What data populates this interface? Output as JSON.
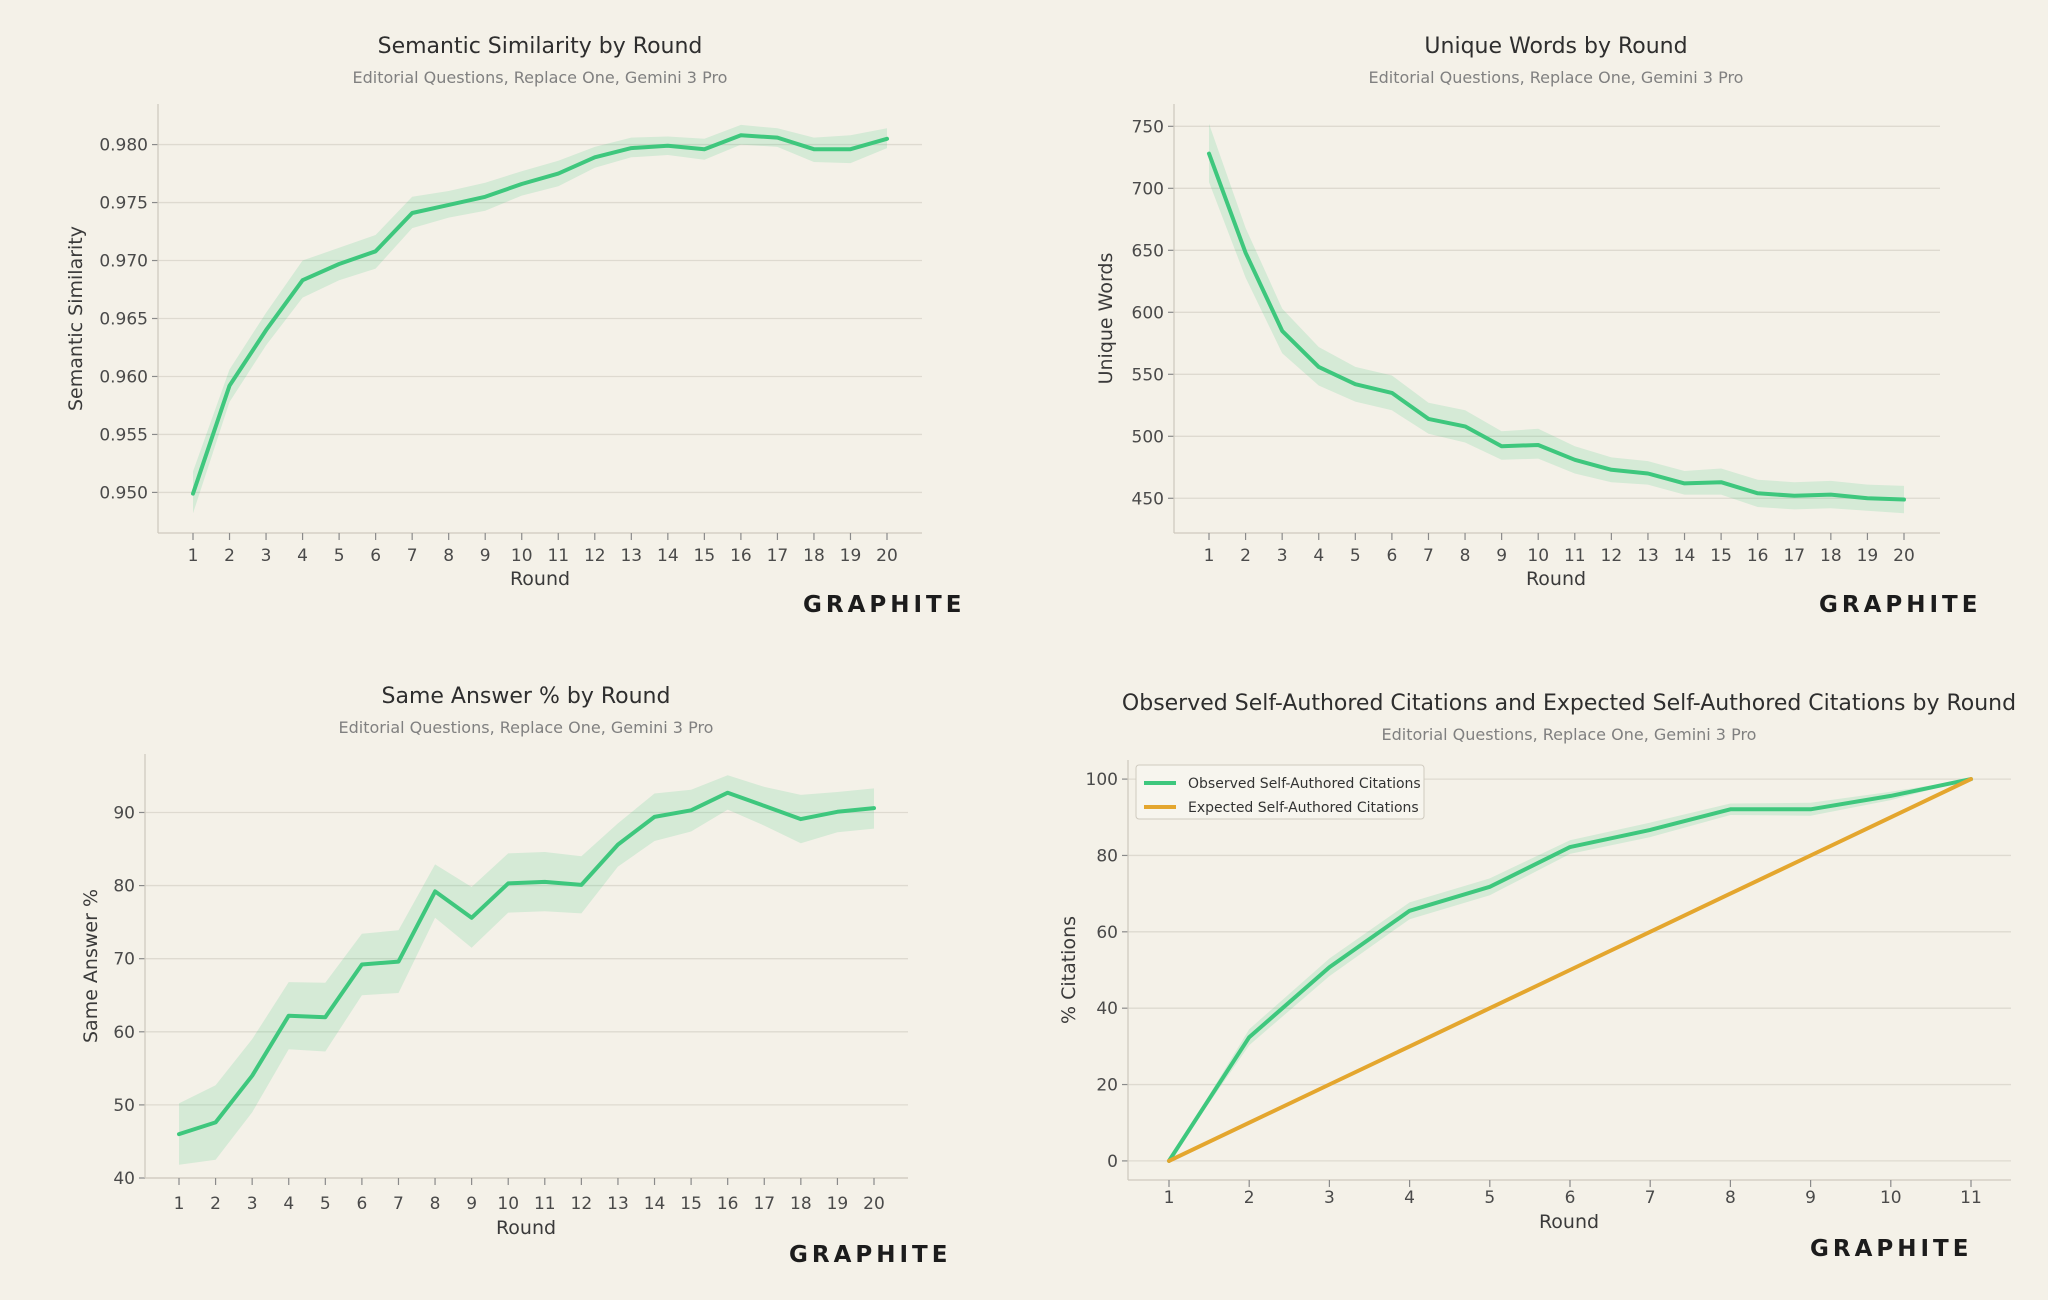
{
  "brand": "GRAPHITE",
  "colors": {
    "background": "#f4f1e8",
    "observed": "#3ec77d",
    "expected": "#e4a62e",
    "band": "#3ec77d"
  },
  "chart_data": [
    {
      "type": "line",
      "title": "Semantic Similarity by Round",
      "subtitle": "Editorial Questions, Replace One, Gemini 3 Pro",
      "xlabel": "Round",
      "ylabel": "Semantic Similarity",
      "x": [
        1,
        2,
        3,
        4,
        5,
        6,
        7,
        8,
        9,
        10,
        11,
        12,
        13,
        14,
        15,
        16,
        17,
        18,
        19,
        20
      ],
      "yticks": [
        "0.950",
        "0.955",
        "0.960",
        "0.965",
        "0.970",
        "0.975",
        "0.980"
      ],
      "ylim": [
        0.9465,
        0.9835
      ],
      "grid": true,
      "series": [
        {
          "color": "observed",
          "values": [
            0.9499,
            0.9592,
            0.964,
            0.9683,
            0.9697,
            0.9708,
            0.9741,
            0.9748,
            0.9755,
            0.9766,
            0.9775,
            0.9789,
            0.9797,
            0.9799,
            0.9796,
            0.9808,
            0.9806,
            0.9796,
            0.9796,
            0.9805
          ],
          "lower": [
            0.9482,
            0.9578,
            0.9627,
            0.9668,
            0.9683,
            0.9693,
            0.9728,
            0.9737,
            0.9743,
            0.9756,
            0.9764,
            0.978,
            0.9789,
            0.9791,
            0.9787,
            0.98,
            0.9798,
            0.9785,
            0.9784,
            0.9797
          ],
          "upper": [
            0.9518,
            0.9606,
            0.9655,
            0.97,
            0.9711,
            0.9722,
            0.9755,
            0.976,
            0.9767,
            0.9777,
            0.9786,
            0.9798,
            0.9806,
            0.9807,
            0.9805,
            0.9817,
            0.9814,
            0.9806,
            0.9808,
            0.9814
          ]
        }
      ]
    },
    {
      "type": "line",
      "title": "Unique Words by Round",
      "subtitle": "Editorial Questions, Replace One, Gemini 3 Pro",
      "xlabel": "Round",
      "ylabel": "Unique Words",
      "x": [
        1,
        2,
        3,
        4,
        5,
        6,
        7,
        8,
        9,
        10,
        11,
        12,
        13,
        14,
        15,
        16,
        17,
        18,
        19,
        20
      ],
      "yticks": [
        "450",
        "500",
        "550",
        "600",
        "650",
        "700",
        "750"
      ],
      "ylim": [
        422,
        768
      ],
      "grid": true,
      "series": [
        {
          "color": "observed",
          "values": [
            728,
            648,
            585,
            556,
            542,
            535,
            514,
            508,
            492,
            493,
            481,
            473,
            470,
            462,
            463,
            454,
            452,
            453,
            450,
            449
          ],
          "lower": [
            705,
            628,
            567,
            541,
            528,
            521,
            502,
            495,
            481,
            482,
            470,
            463,
            461,
            453,
            453,
            443,
            441,
            442,
            440,
            438
          ],
          "upper": [
            752,
            668,
            603,
            572,
            556,
            549,
            527,
            521,
            504,
            506,
            492,
            483,
            480,
            472,
            474,
            465,
            463,
            464,
            461,
            460
          ]
        }
      ]
    },
    {
      "type": "line",
      "title": "Same Answer % by Round",
      "subtitle": "Editorial Questions, Replace One, Gemini 3 Pro",
      "xlabel": "Round",
      "ylabel": "Same Answer %",
      "x": [
        1,
        2,
        3,
        4,
        5,
        6,
        7,
        8,
        9,
        10,
        11,
        12,
        13,
        14,
        15,
        16,
        17,
        18,
        19,
        20
      ],
      "yticks": [
        "40",
        "50",
        "60",
        "70",
        "80",
        "90"
      ],
      "ylim": [
        40,
        98
      ],
      "grid": true,
      "series": [
        {
          "color": "observed",
          "values": [
            46.0,
            47.6,
            54.0,
            62.2,
            62.0,
            69.2,
            69.6,
            79.2,
            75.6,
            80.3,
            80.5,
            80.1,
            85.6,
            89.4,
            90.3,
            92.7,
            90.9,
            89.1,
            90.1,
            90.6
          ],
          "lower": [
            41.8,
            42.5,
            49.0,
            57.6,
            57.3,
            65.0,
            65.3,
            75.6,
            71.5,
            76.3,
            76.5,
            76.2,
            82.6,
            86.1,
            87.4,
            90.4,
            88.2,
            85.8,
            87.3,
            87.8
          ],
          "upper": [
            50.2,
            52.7,
            59.0,
            66.8,
            66.7,
            73.4,
            73.9,
            82.9,
            79.8,
            84.4,
            84.6,
            84.0,
            88.5,
            92.6,
            93.1,
            95.1,
            93.5,
            92.4,
            92.8,
            93.3
          ]
        }
      ]
    },
    {
      "type": "line",
      "title": "Observed Self-Authored Citations and Expected Self-Authored Citations by Round",
      "subtitle": "Editorial Questions, Replace One, Gemini 3 Pro",
      "xlabel": "Round",
      "ylabel": "% Citations",
      "x": [
        1,
        2,
        3,
        4,
        5,
        6,
        7,
        8,
        9,
        10,
        11
      ],
      "yticks": [
        "0",
        "20",
        "40",
        "60",
        "80",
        "100"
      ],
      "ylim": [
        -5,
        105
      ],
      "grid": true,
      "legend": "top-left",
      "series": [
        {
          "name": "Observed Self-Authored Citations",
          "color": "observed",
          "values": [
            0,
            32.4,
            50.7,
            65.5,
            71.8,
            82.2,
            86.7,
            92.1,
            92.1,
            95.6,
            100
          ],
          "lower": [
            0,
            30.3,
            48.4,
            63.3,
            69.6,
            80.4,
            84.8,
            90.6,
            90.4,
            94.5,
            100
          ],
          "upper": [
            0,
            34.5,
            53.0,
            67.7,
            74.0,
            84.0,
            88.6,
            93.6,
            93.8,
            96.7,
            100
          ]
        },
        {
          "name": "Expected Self-Authored Citations",
          "color": "expected",
          "values": [
            0,
            10,
            20,
            30,
            40,
            50,
            60,
            70,
            80,
            90,
            100
          ]
        }
      ]
    }
  ]
}
